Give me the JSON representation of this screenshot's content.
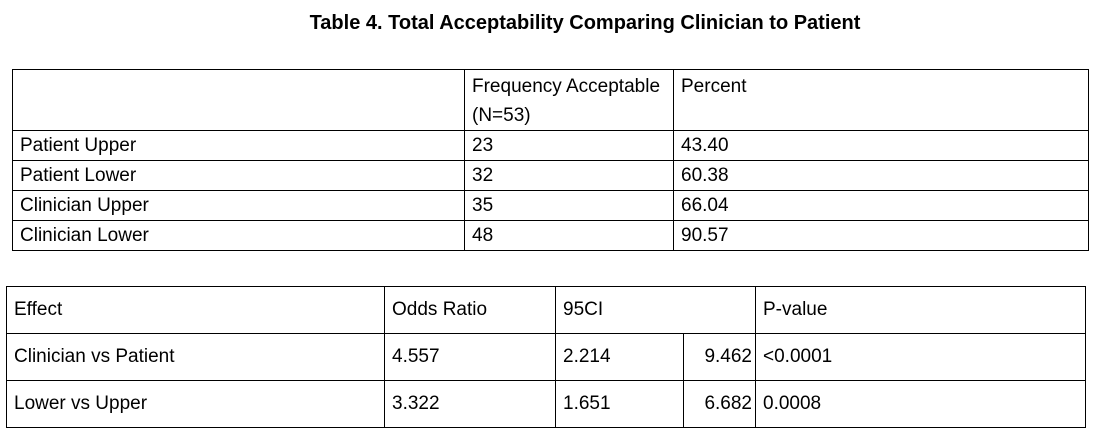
{
  "title": "Table 4. Total Acceptability Comparing Clinician to Patient",
  "table1": {
    "headers": [
      "",
      "Frequency Acceptable (N=53)",
      "Percent"
    ],
    "rows": [
      [
        "Patient Upper",
        "23",
        "43.40"
      ],
      [
        "Patient Lower",
        "32",
        "60.38"
      ],
      [
        "Clinician Upper",
        "35",
        "66.04"
      ],
      [
        "Clinician Lower",
        "48",
        "90.57"
      ]
    ]
  },
  "table2": {
    "headers": [
      "Effect",
      "Odds Ratio",
      "95CI",
      "",
      "P-value"
    ],
    "rows": [
      [
        "Clinician vs Patient",
        "4.557",
        "2.214",
        "9.462",
        "<0.0001"
      ],
      [
        "Lower vs Upper",
        "3.322",
        "1.651",
        "6.682",
        "0.0008"
      ]
    ]
  }
}
